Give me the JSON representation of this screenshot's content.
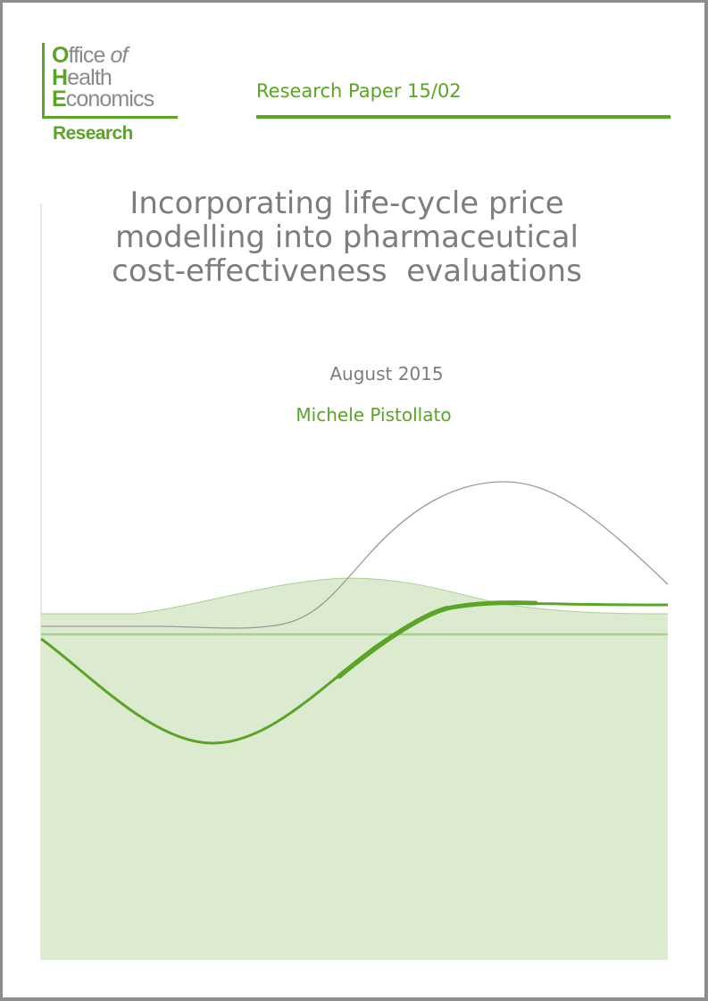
{
  "logo": {
    "line1_initial": "O",
    "line1_rest": "ffice",
    "line1_italic": "of",
    "line2_initial": "H",
    "line2_rest": "ealth",
    "line3_initial": "E",
    "line3_rest": "conomics",
    "sub": "Research"
  },
  "series": "Research Paper 15/02",
  "title_lines": [
    "Incorporating life-cycle price",
    "modelling into pharmaceutical",
    "cost-effectiveness  evaluations"
  ],
  "date": "August 2015",
  "author": "Michele Pistollato",
  "colors": {
    "brand_green": "#5aa426",
    "text_grey": "#7d7d7d",
    "fill_light_green": "#dcebd0",
    "frame_grey": "#8d8d8d"
  }
}
